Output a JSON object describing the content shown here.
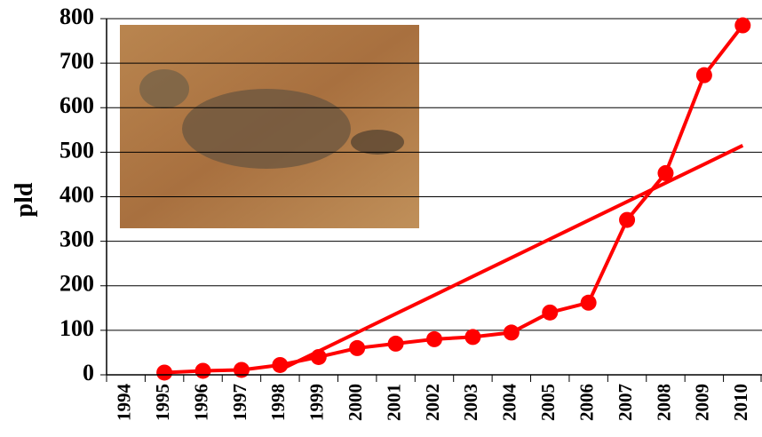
{
  "chart_data": {
    "type": "line",
    "y_label": "pld",
    "categories": [
      "1994",
      "1995",
      "1996",
      "1997",
      "1998",
      "1999",
      "2000",
      "2001",
      "2002",
      "2003",
      "2004",
      "2005",
      "2006",
      "2007",
      "2008",
      "2009",
      "2010"
    ],
    "series": [
      {
        "color": "#ff0000",
        "values": [
          null,
          5,
          9,
          11,
          22,
          40,
          60,
          70,
          80,
          85,
          95,
          140,
          162,
          348,
          453,
          673,
          785
        ]
      }
    ],
    "trend": {
      "color": "#ff0000",
      "values": [
        null,
        null,
        null,
        null,
        11,
        53,
        95,
        137,
        179,
        221,
        263,
        305,
        347,
        389,
        431,
        473,
        515
      ]
    },
    "ylim": [
      0,
      800
    ],
    "yticks": [
      0,
      100,
      200,
      300,
      400,
      500,
      600,
      700,
      800
    ],
    "grid": true
  }
}
